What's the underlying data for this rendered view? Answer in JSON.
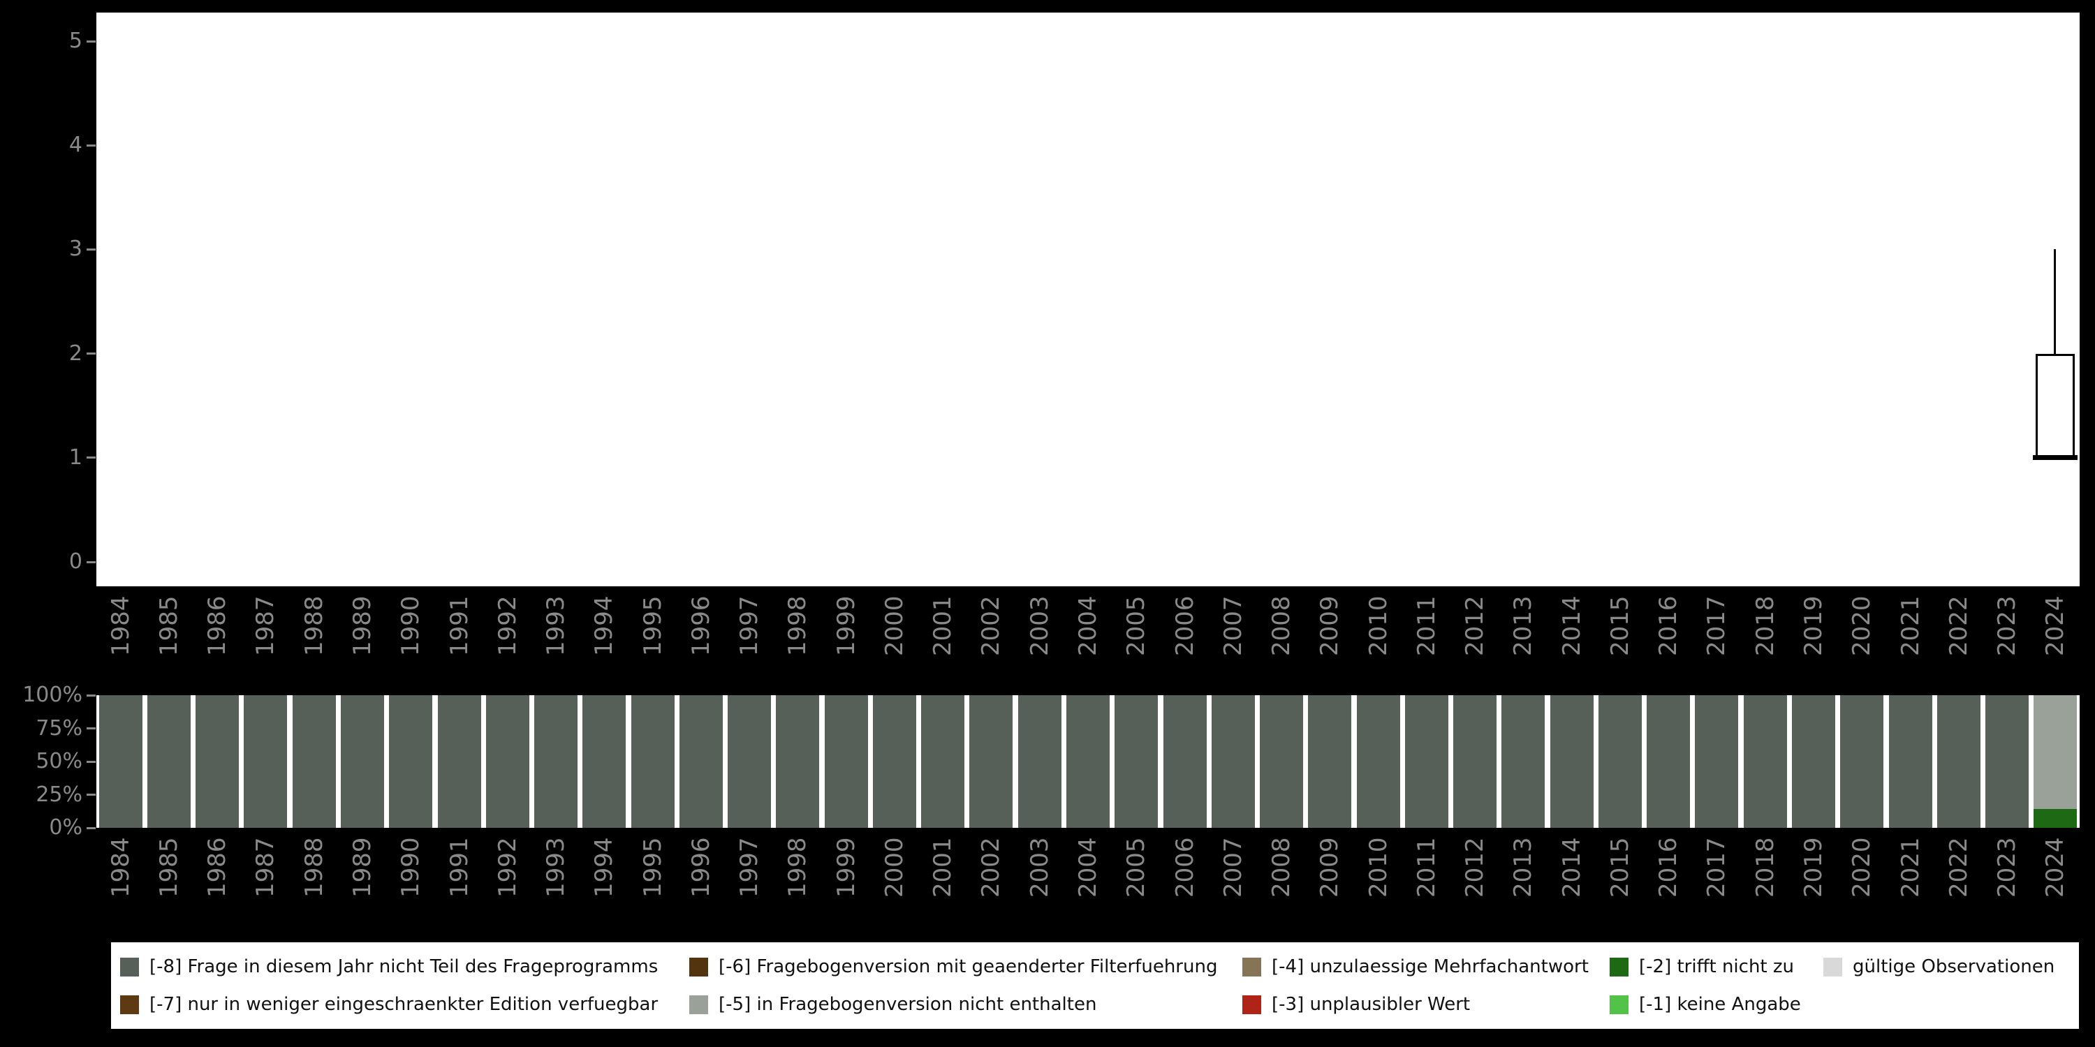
{
  "figure": {
    "background": "#000000",
    "panel_background": "#ffffff",
    "axis_text_color": "#8a8a8a"
  },
  "years": [
    "1984",
    "1985",
    "1986",
    "1987",
    "1988",
    "1989",
    "1990",
    "1991",
    "1992",
    "1993",
    "1994",
    "1995",
    "1996",
    "1997",
    "1998",
    "1999",
    "2000",
    "2001",
    "2002",
    "2003",
    "2004",
    "2005",
    "2006",
    "2007",
    "2008",
    "2009",
    "2010",
    "2011",
    "2012",
    "2013",
    "2014",
    "2015",
    "2016",
    "2017",
    "2018",
    "2019",
    "2020",
    "2021",
    "2022",
    "2023",
    "2024"
  ],
  "code_colors": {
    "-8": "#575f59",
    "-7": "#5e3a12",
    "-6": "#52350f",
    "-5": "#9aa199",
    "-4": "#857456",
    "-3": "#b02418",
    "-2": "#1d6914",
    "-1": "#52c249",
    "valid": "#d9d9d9"
  },
  "chart_data": [
    {
      "type": "boxplot",
      "title": "",
      "xlabel": "",
      "ylabel": "",
      "ylim": [
        0,
        5
      ],
      "yticks": [
        0,
        1,
        2,
        3,
        4,
        5
      ],
      "x_tick_labels": "years",
      "boxes": [
        {
          "year": "2024",
          "whisker_low": 1,
          "q1": 1,
          "median": 1,
          "q3": 2,
          "whisker_high": 3
        }
      ],
      "note": "Only the year 2024 shows a box; all other years have no valid data."
    },
    {
      "type": "bar",
      "subtype": "stacked-percent",
      "x_tick_labels": "years",
      "yticks_percent": [
        0,
        25,
        50,
        75,
        100
      ],
      "default_segments": [
        {
          "code": "-8",
          "pct": 100
        }
      ],
      "overrides": {
        "2024": [
          {
            "code": "-2",
            "pct": 14
          },
          {
            "code": "-5",
            "pct": 86
          }
        ]
      }
    }
  ],
  "legend": {
    "rows": [
      [
        {
          "code": "-8",
          "label": "[-8] Frage in diesem Jahr nicht Teil des Frageprogramms"
        },
        {
          "code": "-6",
          "label": "[-6] Fragebogenversion mit geaenderter Filterfuehrung"
        },
        {
          "code": "-4",
          "label": "[-4] unzulaessige Mehrfachantwort"
        },
        {
          "code": "-2",
          "label": "[-2] trifft nicht zu"
        },
        {
          "code": "valid",
          "label": "gültige Observationen"
        }
      ],
      [
        {
          "code": "-7",
          "label": "[-7] nur in weniger eingeschraenkter Edition verfuegbar"
        },
        {
          "code": "-5",
          "label": "[-5] in Fragebogenversion nicht enthalten"
        },
        {
          "code": "-3",
          "label": "[-3] unplausibler Wert"
        },
        {
          "code": "-1",
          "label": "[-1] keine Angabe"
        }
      ]
    ]
  }
}
